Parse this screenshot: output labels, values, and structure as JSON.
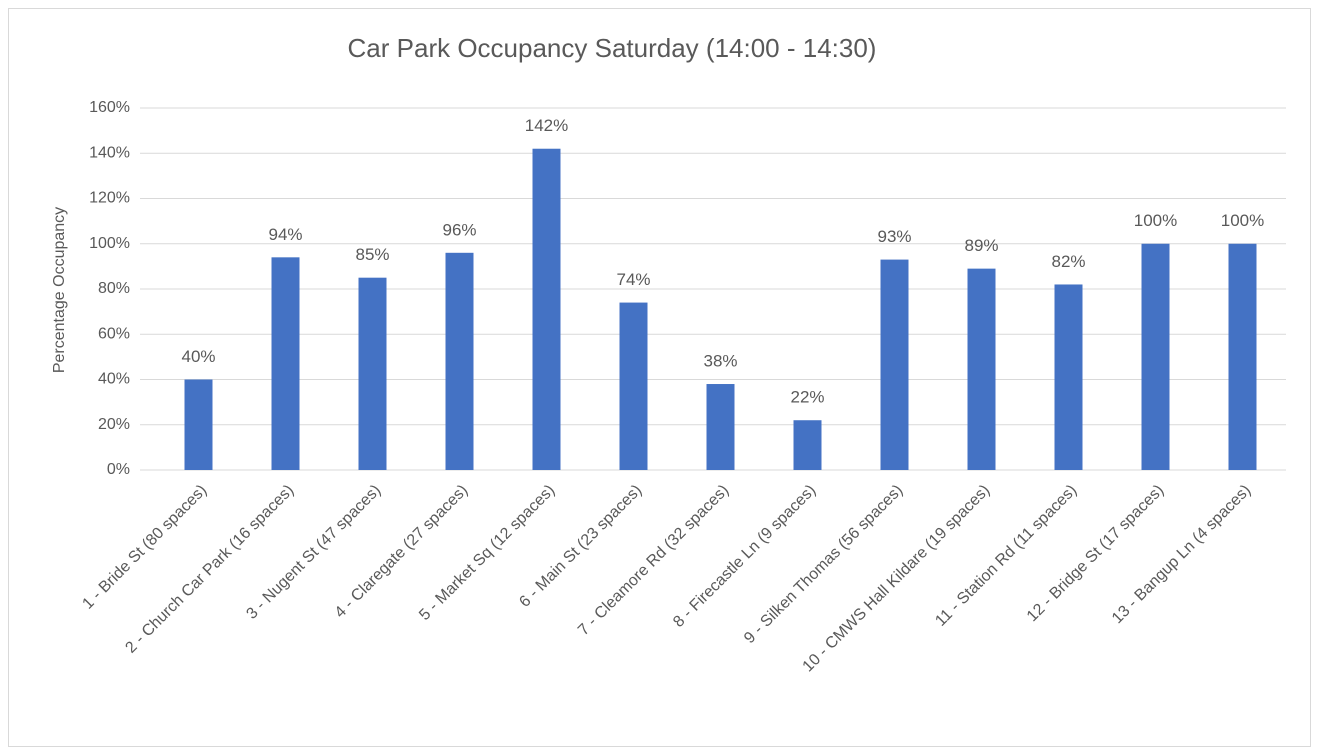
{
  "chart_data": {
    "type": "bar",
    "title": "Car Park Occupancy Saturday (14:00 - 14:30)",
    "y_label": "Percentage Occupancy",
    "categories": [
      "1 - Bride St (80 spaces)",
      "2 - Church Car Park (16 spaces)",
      "3 - Nugent St (47 spaces)",
      "4 - Claregate (27 spaces)",
      "5 - Market Sq (12 spaces)",
      "6 - Main St (23 spaces)",
      "7 - Cleamore Rd (32 spaces)",
      "8 - Firecastle Ln (9 spaces)",
      "9 - Silken Thomas (56 spaces)",
      "10 - CMWS Hall Kildare (19 spaces)",
      "11 - Station Rd (11 spaces)",
      "12 - Bridge St (17 spaces)",
      "13 - Bangup Ln (4 spaces)"
    ],
    "values": [
      40,
      94,
      85,
      96,
      142,
      74,
      38,
      22,
      93,
      89,
      82,
      100,
      100
    ],
    "value_labels": [
      "40%",
      "94%",
      "85%",
      "96%",
      "142%",
      "74%",
      "38%",
      "22%",
      "93%",
      "89%",
      "82%",
      "100%",
      "100%"
    ],
    "color": "#4472c4",
    "ylim": [
      0,
      160
    ],
    "yticks": [
      {
        "value": 0,
        "label": "0%"
      },
      {
        "value": 20,
        "label": "20%"
      },
      {
        "value": 40,
        "label": "40%"
      },
      {
        "value": 60,
        "label": "60%"
      },
      {
        "value": 80,
        "label": "80%"
      },
      {
        "value": 100,
        "label": "100%"
      },
      {
        "value": 120,
        "label": "120%"
      },
      {
        "value": 140,
        "label": "140%"
      },
      {
        "value": 160,
        "label": "160%"
      }
    ],
    "grid": true
  }
}
